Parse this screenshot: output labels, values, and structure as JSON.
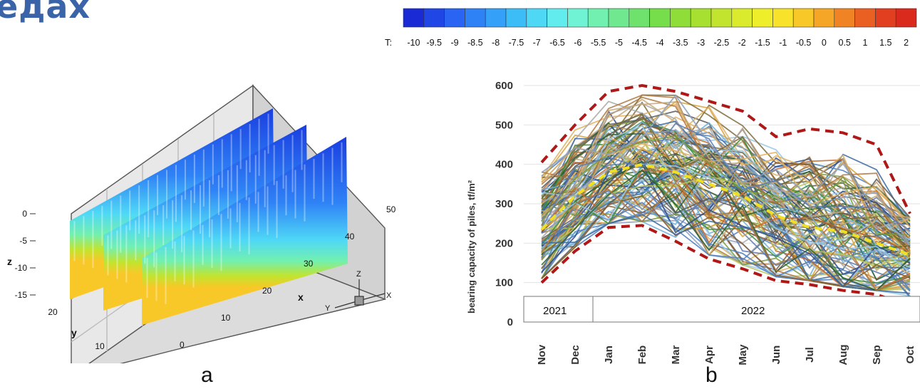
{
  "heading_fragment": "едах",
  "colorbar": {
    "label": "T:",
    "ticks": [
      "-10",
      "-9.5",
      "-9",
      "-8.5",
      "-8",
      "-7.5",
      "-7",
      "-6.5",
      "-6",
      "-5.5",
      "-5",
      "-4.5",
      "-4",
      "-3.5",
      "-3",
      "-2.5",
      "-2",
      "-1.5",
      "-1",
      "-0.5",
      "0",
      "0.5",
      "1",
      "1.5",
      "2"
    ],
    "colors": [
      "#1a2bd6",
      "#2046e6",
      "#2a64f2",
      "#2f82f6",
      "#34a0f7",
      "#3dbdf8",
      "#4fd8f6",
      "#63ecee",
      "#6ff3d4",
      "#72f0b0",
      "#6fe890",
      "#6ee26c",
      "#76de4a",
      "#8edd38",
      "#a8e032",
      "#c2e42e",
      "#daea2c",
      "#eeee2a",
      "#f8e22a",
      "#f8c828",
      "#f5a626",
      "#f08424",
      "#ea6022",
      "#e23e20",
      "#da2a1e"
    ]
  },
  "panel_a": {
    "caption": "a",
    "x_ticks": [
      "0",
      "10",
      "20",
      "30",
      "40",
      "50"
    ],
    "x_label": "x",
    "y_ticks": [
      "0",
      "10",
      "20"
    ],
    "y_label": "y",
    "z_ticks": [
      "0",
      "-5",
      "-10",
      "-15"
    ],
    "z_label": "z",
    "axes_glyph": {
      "z": "Z",
      "y": "Y",
      "x": "X"
    }
  },
  "panel_b": {
    "caption": "b",
    "ylabel": "bearing capacity of piles, tf/m²",
    "year_labels": [
      "2021",
      "2022"
    ]
  },
  "chart_data": {
    "type": "line",
    "x": [
      "Nov",
      "Dec",
      "Jan",
      "Feb",
      "Mar",
      "Apr",
      "May",
      "Jun",
      "Jul",
      "Aug",
      "Sep",
      "Oct"
    ],
    "y_ticks": [
      "0",
      "100",
      "200",
      "300",
      "400",
      "500",
      "600"
    ],
    "ylim": [
      0,
      600
    ],
    "ylabel": "bearing capacity of piles, tf/m²",
    "grid": true,
    "envelope_upper": [
      405,
      500,
      585,
      600,
      585,
      560,
      535,
      470,
      490,
      480,
      450,
      275
    ],
    "envelope_lower": [
      100,
      180,
      240,
      245,
      205,
      160,
      135,
      105,
      95,
      80,
      70,
      40
    ],
    "mean_line": [
      235,
      320,
      380,
      400,
      380,
      350,
      320,
      270,
      240,
      230,
      200,
      170
    ],
    "series_colors": [
      "#4a7fbf",
      "#d9a23a",
      "#7f6a3a",
      "#3c8c3c",
      "#2a4a8a",
      "#c46a2a",
      "#6fb0d8",
      "#a8a8a8",
      "#5a5a5a",
      "#b8c65a",
      "#8a5a2a",
      "#e0b060",
      "#3a6aa0",
      "#9ac8e8",
      "#7a9a3a",
      "#c8a878",
      "#2e5e2e",
      "#5a7ab0",
      "#b07840",
      "#88a0c0"
    ],
    "series_count": 120
  }
}
